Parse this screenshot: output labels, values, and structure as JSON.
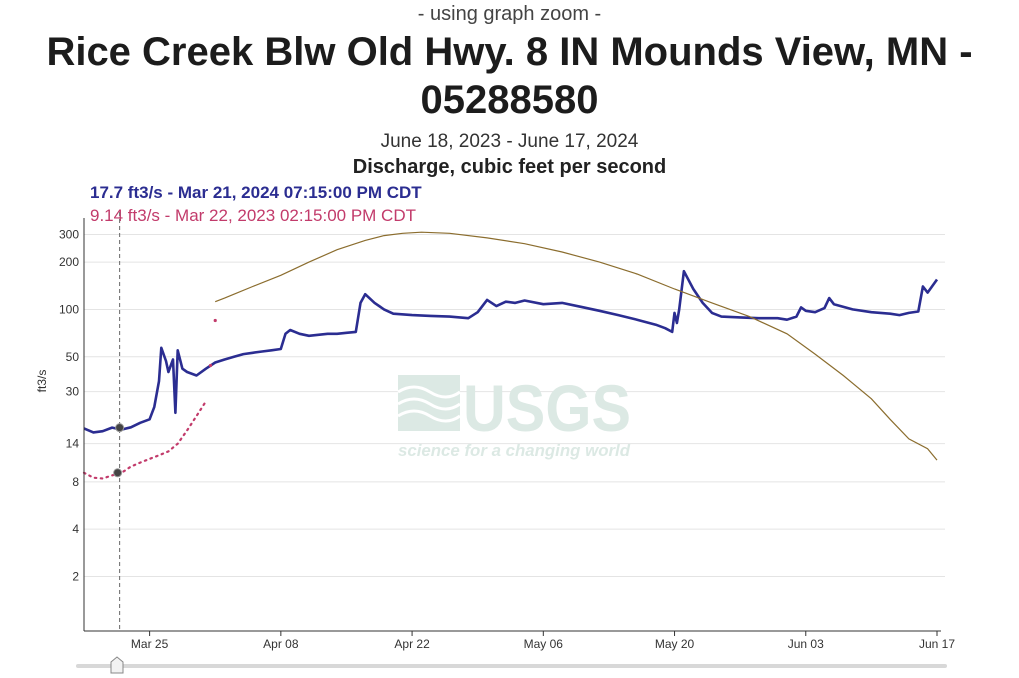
{
  "header": {
    "zoom_note": "- using graph zoom -",
    "title": "Rice Creek Blw Old Hwy. 8 IN Mounds View, MN - 05288580",
    "date_range": "June 18, 2023 - June 17, 2024",
    "parameter": "Discharge, cubic feet per second"
  },
  "tooltip": {
    "current": "17.7 ft3/s - Mar 21, 2024 07:15:00 PM CDT",
    "previous": "9.14 ft3/s - Mar 22, 2023 02:15:00 PM CDT"
  },
  "colors": {
    "current_series": "#2b2d91",
    "previous_series": "#c23b6b",
    "median_series": "#8b6d2e",
    "grid": "#e4e4e4",
    "watermark": "#dce9e4"
  },
  "watermark": {
    "logo": "USGS",
    "tagline": "science for a changing world"
  },
  "chart_data": {
    "type": "line",
    "y_scale": "log",
    "ylabel": "ft3/s",
    "y_ticks": [
      2,
      4,
      8,
      14,
      30,
      50,
      100,
      200,
      300
    ],
    "x_ticks": [
      {
        "date": "2024-03-25",
        "label": "Mar 25"
      },
      {
        "date": "2024-04-08",
        "label": "Apr 08"
      },
      {
        "date": "2024-04-22",
        "label": "Apr 22"
      },
      {
        "date": "2024-05-06",
        "label": "May 06"
      },
      {
        "date": "2024-05-20",
        "label": "May 20"
      },
      {
        "date": "2024-06-03",
        "label": "Jun 03"
      },
      {
        "date": "2024-06-17",
        "label": "Jun 17"
      }
    ],
    "x_range": [
      "2024-03-18",
      "2024-06-17"
    ],
    "y_range": [
      0.9,
      360
    ],
    "grid": true,
    "cursor": {
      "date": "2024-03-21T19:15",
      "current_value": 17.7,
      "previous_value": 9.14
    },
    "series": [
      {
        "style": "thick",
        "points": [
          [
            "2024-03-18",
            17.5
          ],
          [
            "2024-03-19",
            16.5
          ],
          [
            "2024-03-20",
            16.8
          ],
          [
            "2024-03-21",
            17.7
          ],
          [
            "2024-03-22",
            17.2
          ],
          [
            "2024-03-23",
            17.8
          ],
          [
            "2024-03-24",
            19
          ],
          [
            "2024-03-25",
            20
          ],
          [
            "2024-03-25T12:00",
            24
          ],
          [
            "2024-03-26",
            35
          ],
          [
            "2024-03-26T06:00",
            57
          ],
          [
            "2024-03-26T18:00",
            47
          ],
          [
            "2024-03-27",
            40
          ],
          [
            "2024-03-27T12:00",
            48
          ],
          [
            "2024-03-27T18:00",
            22
          ],
          [
            "2024-03-28",
            55
          ],
          [
            "2024-03-28T12:00",
            42
          ],
          [
            "2024-03-29",
            40
          ],
          [
            "2024-03-30",
            38
          ],
          [
            "2024-03-31",
            42
          ],
          [
            "2024-04-01",
            46
          ],
          [
            "2024-04-02",
            48
          ],
          [
            "2024-04-03",
            50
          ],
          [
            "2024-04-04",
            52
          ],
          [
            "2024-04-05",
            53
          ],
          [
            "2024-04-06",
            54
          ],
          [
            "2024-04-07",
            55
          ],
          [
            "2024-04-08",
            56
          ],
          [
            "2024-04-08T12:00",
            70
          ],
          [
            "2024-04-09",
            74
          ],
          [
            "2024-04-10",
            70
          ],
          [
            "2024-04-11",
            68
          ],
          [
            "2024-04-12",
            69
          ],
          [
            "2024-04-13",
            70
          ],
          [
            "2024-04-14",
            70
          ],
          [
            "2024-04-15",
            71
          ],
          [
            "2024-04-16",
            72
          ],
          [
            "2024-04-16T12:00",
            110
          ],
          [
            "2024-04-17",
            125
          ],
          [
            "2024-04-18",
            110
          ],
          [
            "2024-04-19",
            100
          ],
          [
            "2024-04-20",
            94
          ],
          [
            "2024-04-22",
            92
          ],
          [
            "2024-04-24",
            91
          ],
          [
            "2024-04-26",
            90
          ],
          [
            "2024-04-28",
            88
          ],
          [
            "2024-04-29",
            96
          ],
          [
            "2024-04-30",
            115
          ],
          [
            "2024-05-01",
            105
          ],
          [
            "2024-05-02",
            112
          ],
          [
            "2024-05-03",
            110
          ],
          [
            "2024-05-04",
            114
          ],
          [
            "2024-05-06",
            108
          ],
          [
            "2024-05-08",
            110
          ],
          [
            "2024-05-10",
            104
          ],
          [
            "2024-05-12",
            98
          ],
          [
            "2024-05-14",
            92
          ],
          [
            "2024-05-16",
            86
          ],
          [
            "2024-05-18",
            80
          ],
          [
            "2024-05-19",
            76
          ],
          [
            "2024-05-19T18:00",
            72
          ],
          [
            "2024-05-20",
            95
          ],
          [
            "2024-05-20T06:00",
            82
          ],
          [
            "2024-05-20T12:00",
            100
          ],
          [
            "2024-05-21",
            175
          ],
          [
            "2024-05-22",
            135
          ],
          [
            "2024-05-23",
            110
          ],
          [
            "2024-05-24",
            95
          ],
          [
            "2024-05-25",
            90
          ],
          [
            "2024-05-27",
            89
          ],
          [
            "2024-05-29",
            88
          ],
          [
            "2024-05-31",
            88
          ],
          [
            "2024-06-01",
            86
          ],
          [
            "2024-06-02",
            90
          ],
          [
            "2024-06-02T12:00",
            103
          ],
          [
            "2024-06-03",
            98
          ],
          [
            "2024-06-04",
            96
          ],
          [
            "2024-06-05",
            102
          ],
          [
            "2024-06-05T12:00",
            118
          ],
          [
            "2024-06-06",
            108
          ],
          [
            "2024-06-08",
            100
          ],
          [
            "2024-06-10",
            96
          ],
          [
            "2024-06-12",
            94
          ],
          [
            "2024-06-13",
            92
          ],
          [
            "2024-06-14",
            95
          ],
          [
            "2024-06-15",
            97
          ],
          [
            "2024-06-15T12:00",
            140
          ],
          [
            "2024-06-16",
            128
          ],
          [
            "2024-06-17",
            155
          ]
        ]
      },
      {
        "style": "dotted",
        "points": [
          [
            "2024-03-18",
            9.14
          ],
          [
            "2024-03-19",
            8.5
          ],
          [
            "2024-03-20",
            8.4
          ],
          [
            "2024-03-21",
            8.8
          ],
          [
            "2024-03-22",
            9.14
          ],
          [
            "2024-03-23",
            10
          ],
          [
            "2024-03-24",
            10.6
          ],
          [
            "2024-03-25",
            11.2
          ],
          [
            "2024-03-26",
            11.8
          ],
          [
            "2024-03-27",
            12.5
          ],
          [
            "2024-03-28",
            14
          ],
          [
            "2024-03-29",
            17
          ],
          [
            "2024-03-30",
            21
          ],
          [
            "2024-03-31",
            26
          ]
        ],
        "extra_points": [
          [
            "2024-03-31T12:00",
            44
          ],
          [
            "2024-04-01",
            85
          ]
        ]
      },
      {
        "style": "thin",
        "points": [
          [
            "2024-04-01",
            112
          ],
          [
            "2024-04-02",
            118
          ],
          [
            "2024-04-03",
            125
          ],
          [
            "2024-04-05",
            140
          ],
          [
            "2024-04-08",
            165
          ],
          [
            "2024-04-11",
            200
          ],
          [
            "2024-04-14",
            240
          ],
          [
            "2024-04-17",
            275
          ],
          [
            "2024-04-19",
            295
          ],
          [
            "2024-04-21",
            305
          ],
          [
            "2024-04-23",
            310
          ],
          [
            "2024-04-26",
            305
          ],
          [
            "2024-04-30",
            285
          ],
          [
            "2024-05-04",
            262
          ],
          [
            "2024-05-08",
            232
          ],
          [
            "2024-05-12",
            200
          ],
          [
            "2024-05-16",
            168
          ],
          [
            "2024-05-20",
            135
          ],
          [
            "2024-05-24",
            110
          ],
          [
            "2024-05-28",
            90
          ],
          [
            "2024-06-01",
            70
          ],
          [
            "2024-06-04",
            52
          ],
          [
            "2024-06-07",
            38
          ],
          [
            "2024-06-10",
            27
          ],
          [
            "2024-06-12",
            20
          ],
          [
            "2024-06-14",
            15
          ],
          [
            "2024-06-16",
            13
          ],
          [
            "2024-06-17",
            11
          ]
        ]
      }
    ]
  }
}
